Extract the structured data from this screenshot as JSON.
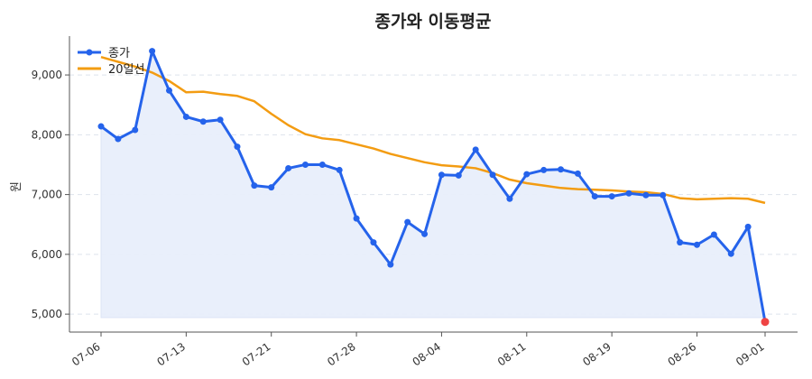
{
  "chart_data": {
    "type": "line",
    "title": "종가와 이동평균",
    "ylabel": "원",
    "xlabel": "",
    "ylim": [
      4700,
      9650
    ],
    "y_ticks": [
      5000,
      6000,
      7000,
      8000,
      9000
    ],
    "y_tick_labels": [
      "5,000",
      "6,000",
      "7,000",
      "8,000",
      "9,000"
    ],
    "x_ticks": [
      "07-06",
      "07-13",
      "07-21",
      "07-28",
      "08-04",
      "08-11",
      "08-19",
      "08-26",
      "09-01"
    ],
    "x_tick_index": [
      0,
      5,
      10,
      15,
      20,
      25,
      30,
      35,
      39
    ],
    "grid": "horizontal dashed",
    "legend": "top-left",
    "series": [
      {
        "name": "종가",
        "color": "#2563eb",
        "fill": true,
        "last_point_color": "#ef4444",
        "values": [
          8140,
          7930,
          8080,
          9400,
          8740,
          8300,
          8220,
          8250,
          7800,
          7150,
          7120,
          7440,
          7500,
          7500,
          7410,
          6600,
          6200,
          5830,
          6540,
          6340,
          7330,
          7320,
          7750,
          7330,
          6930,
          7340,
          7410,
          7420,
          7350,
          6970,
          6970,
          7020,
          6990,
          6990,
          6200,
          6160,
          6330,
          6010,
          6460,
          4870
        ]
      },
      {
        "name": "20일선",
        "color": "#f39c12",
        "fill": false,
        "values": [
          9300,
          9220,
          9140,
          9040,
          8900,
          8710,
          8720,
          8680,
          8650,
          8560,
          8350,
          8160,
          8010,
          7940,
          7910,
          7840,
          7770,
          7680,
          7610,
          7540,
          7490,
          7470,
          7440,
          7360,
          7250,
          7190,
          7150,
          7110,
          7090,
          7080,
          7070,
          7050,
          7040,
          7010,
          6940,
          6920,
          6930,
          6940,
          6930,
          6860
        ]
      }
    ]
  }
}
